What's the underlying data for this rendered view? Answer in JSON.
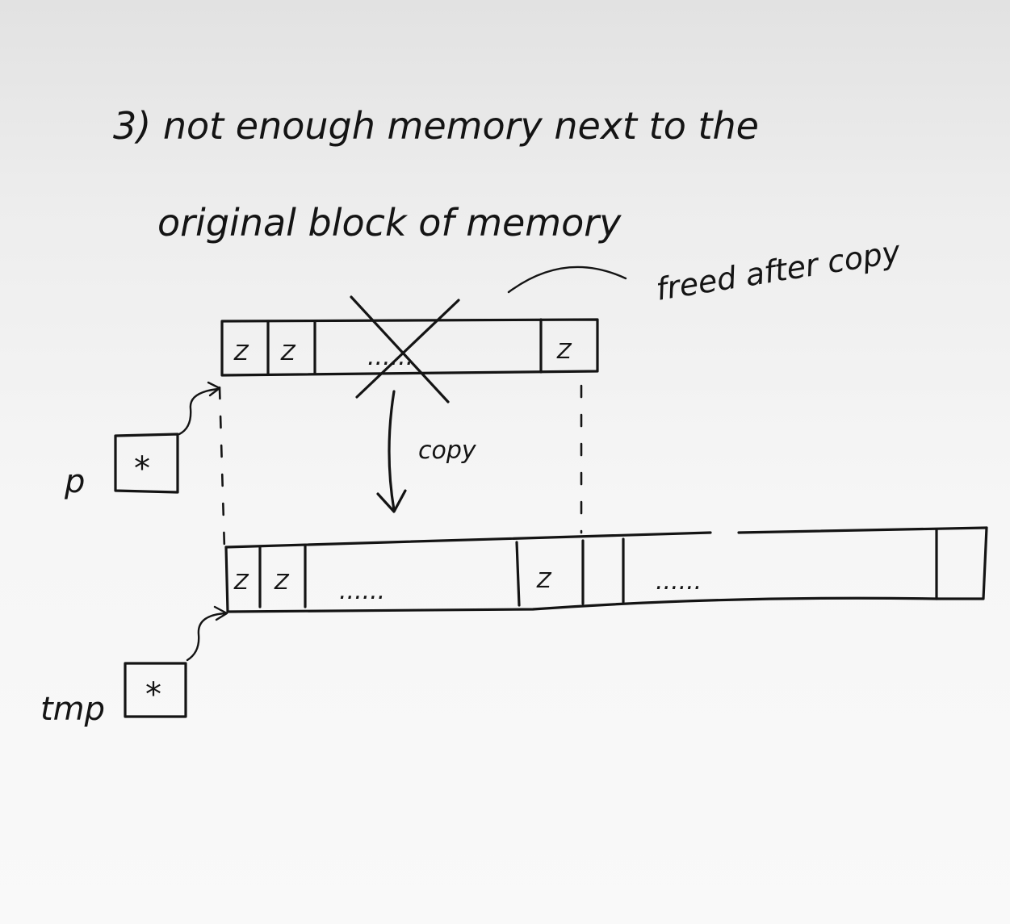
{
  "heading": {
    "line1": "3) not enough memory next to the",
    "line2": "original block of memory"
  },
  "annotation": "freed after copy",
  "copy_label": "copy",
  "pointers": [
    {
      "name": "p",
      "cell": "*"
    },
    {
      "name": "tmp",
      "cell": "*"
    }
  ],
  "cell_glyph": "Z",
  "dots": "......"
}
